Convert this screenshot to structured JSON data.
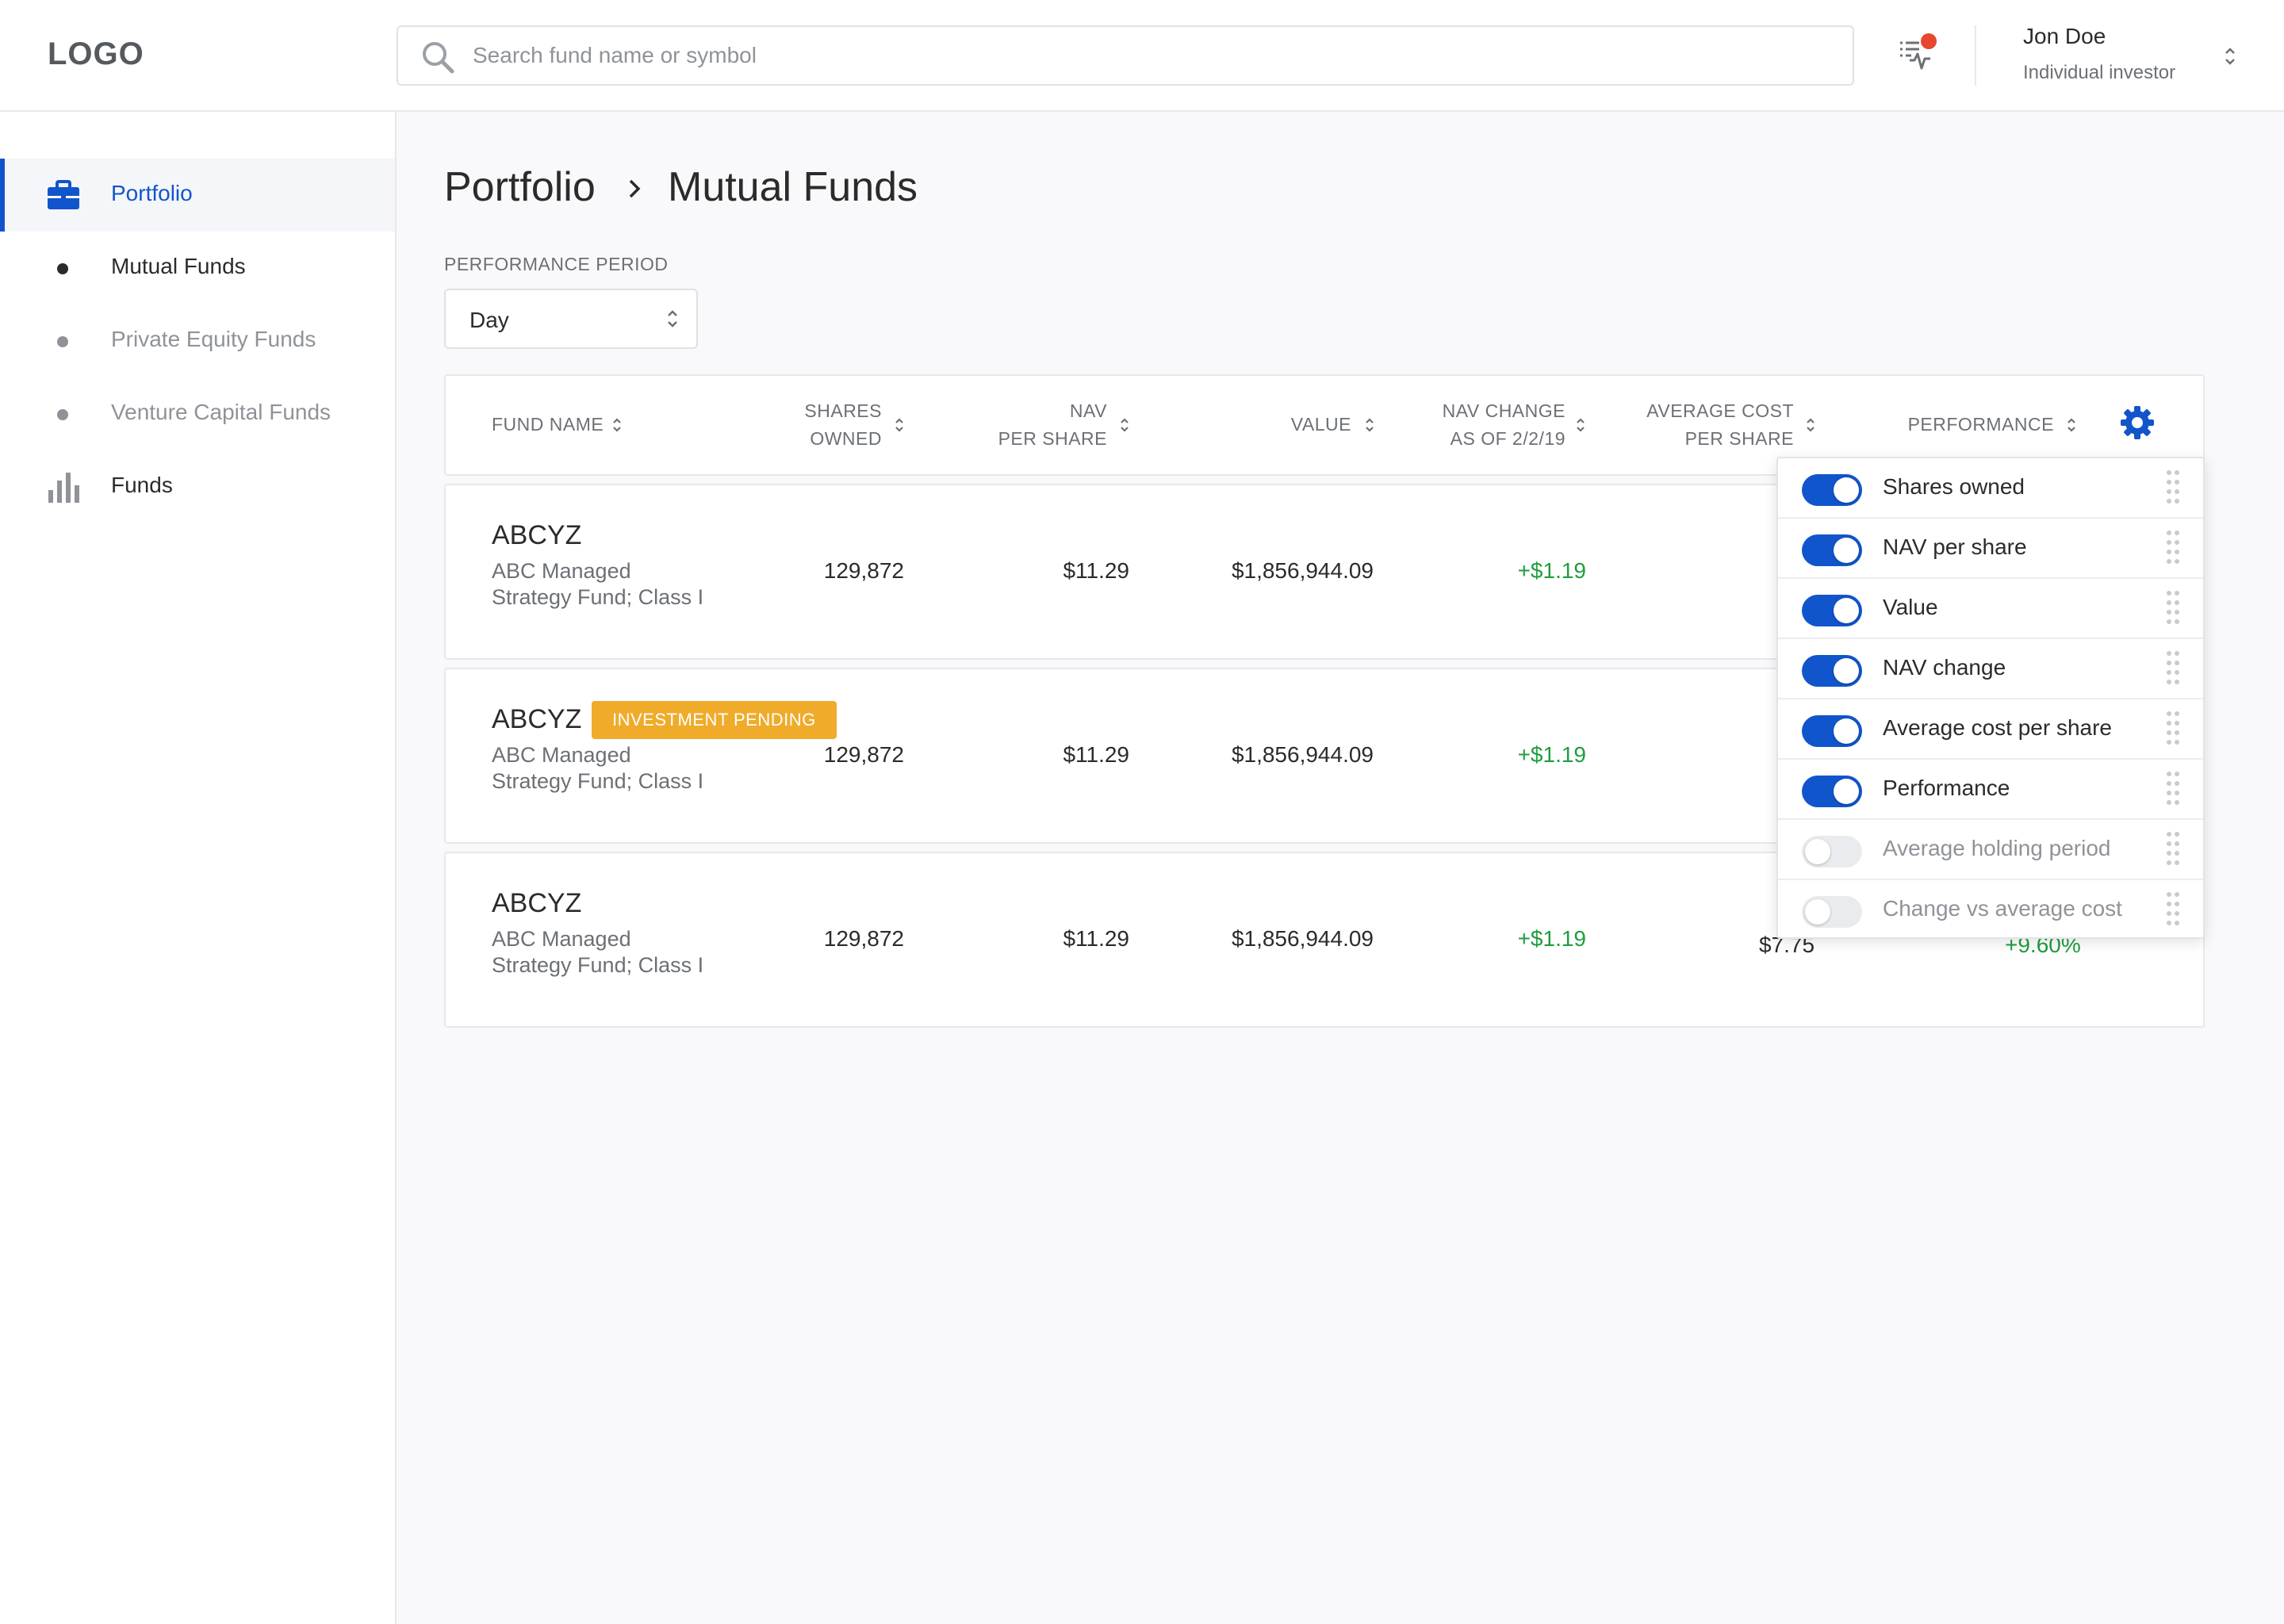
{
  "header": {
    "logo": "LOGO",
    "search_placeholder": "Search fund name or symbol",
    "user_name": "Jon Doe",
    "user_role": "Individual investor"
  },
  "sidebar": {
    "items": [
      {
        "label": "Portfolio",
        "icon": "briefcase-icon",
        "active": true
      },
      {
        "label": "Mutual Funds",
        "icon": "bullet-icon"
      },
      {
        "label": "Private Equity Funds",
        "icon": "bullet-icon"
      },
      {
        "label": "Venture Capital Funds",
        "icon": "bullet-icon"
      },
      {
        "label": "Funds",
        "icon": "bar-chart-icon"
      }
    ]
  },
  "breadcrumb": {
    "root": "Portfolio",
    "current": "Mutual Funds"
  },
  "performance_period": {
    "label": "PERFORMANCE PERIOD",
    "value": "Day"
  },
  "table": {
    "columns": {
      "fund_name": "FUND NAME",
      "shares_owned_1": "SHARES",
      "shares_owned_2": "OWNED",
      "nav_1": "NAV",
      "nav_2": "PER SHARE",
      "value": "VALUE",
      "nav_change_1": "NAV CHANGE",
      "nav_change_2": "AS OF 2/2/19",
      "avg_cost_1": "AVERAGE COST",
      "avg_cost_2": "PER SHARE",
      "performance": "PERFORMANCE"
    },
    "rows": [
      {
        "symbol": "ABCYZ",
        "desc_1": "ABC Managed",
        "desc_2": "Strategy Fund; Class I",
        "shares": "129,872",
        "nav": "$11.29",
        "value": "$1,856,944.09",
        "nav_change": "+$1.19",
        "badge": ""
      },
      {
        "symbol": "ABCYZ",
        "desc_1": "ABC Managed",
        "desc_2": "Strategy Fund; Class I",
        "shares": "129,872",
        "nav": "$11.29",
        "value": "$1,856,944.09",
        "nav_change": "+$1.19",
        "badge": "INVESTMENT PENDING"
      },
      {
        "symbol": "ABCYZ",
        "desc_1": "ABC Managed",
        "desc_2": "Strategy Fund; Class I",
        "shares": "129,872",
        "nav": "$11.29",
        "value": "$1,856,944.09",
        "nav_change": "+$1.19",
        "badge": ""
      }
    ],
    "row3_avg_cost_partial": "$7.75",
    "row3_performance_partial": "+9.60%"
  },
  "column_menu": {
    "items": [
      {
        "label": "Shares owned",
        "enabled": true
      },
      {
        "label": "NAV per share",
        "enabled": true
      },
      {
        "label": "Value",
        "enabled": true
      },
      {
        "label": "NAV change",
        "enabled": true
      },
      {
        "label": "Average cost per share",
        "enabled": true
      },
      {
        "label": "Performance",
        "enabled": true
      },
      {
        "label": "Average holding period",
        "enabled": false
      },
      {
        "label": "Change vs average cost",
        "enabled": false
      }
    ]
  },
  "colors": {
    "accent": "#1155cc",
    "positive": "#1f9e3e",
    "badge": "#f0ab2a",
    "alert": "#e8462f"
  }
}
